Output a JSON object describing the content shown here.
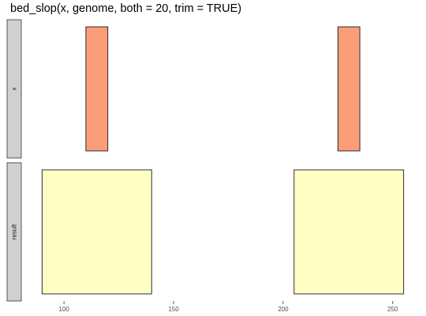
{
  "title": "bed_slop(x, genome, both = 20, trim = TRUE)",
  "colors": {
    "strip_fill": "#d0d0d0",
    "strip_border": "#333333",
    "tick": "#333333",
    "bar_border": "#1a1a1a"
  },
  "chart_data": {
    "type": "bar",
    "title": "bed_slop(x, genome, both = 20, trim = TRUE)",
    "xlim": [
      87,
      258
    ],
    "x_ticks": [
      100,
      150,
      200,
      250
    ],
    "tick_labels": [
      "100",
      "150",
      "200",
      "250"
    ],
    "grid": false,
    "panels": [
      {
        "label": "x",
        "fill": "#fc9d7a",
        "intervals": [
          {
            "start": 110,
            "end": 120
          },
          {
            "start": 225,
            "end": 235
          }
        ]
      },
      {
        "label": "result",
        "fill": "#ffffc5",
        "intervals": [
          {
            "start": 90,
            "end": 140
          },
          {
            "start": 205,
            "end": 255
          }
        ]
      }
    ]
  }
}
